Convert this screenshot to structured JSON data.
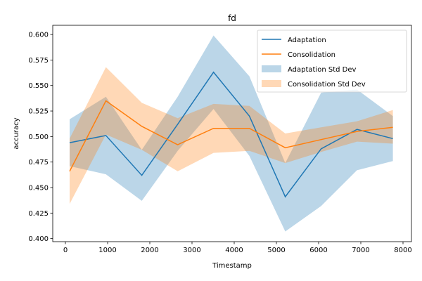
{
  "chart_data": {
    "type": "line",
    "title": "fd",
    "xlabel": "Timestamp",
    "ylabel": "accuracy",
    "xlim": [
      -300,
      8200
    ],
    "ylim": [
      0.397,
      0.609
    ],
    "xticks": [
      0,
      1000,
      2000,
      3000,
      4000,
      5000,
      6000,
      7000,
      8000
    ],
    "xtick_labels": [
      "0",
      "1000",
      "2000",
      "3000",
      "4000",
      "5000",
      "6000",
      "7000",
      "8000"
    ],
    "yticks": [
      0.4,
      0.425,
      0.45,
      0.475,
      0.5,
      0.525,
      0.55,
      0.575,
      0.6
    ],
    "ytick_labels": [
      "0.400",
      "0.425",
      "0.450",
      "0.475",
      "0.500",
      "0.525",
      "0.550",
      "0.575",
      "0.600"
    ],
    "grid": false,
    "legend_position": "top-right",
    "x": [
      100,
      960,
      1810,
      2660,
      3510,
      4360,
      5210,
      6060,
      6910,
      7760
    ],
    "series": [
      {
        "name": "Adaptation",
        "color": "#1f77b4",
        "values": [
          0.494,
          0.501,
          0.462,
          0.512,
          0.563,
          0.52,
          0.441,
          0.488,
          0.507,
          0.498
        ],
        "std_name": "Adaptation Std Dev",
        "std_color": "#1f77b4",
        "lower": [
          0.471,
          0.463,
          0.437,
          0.486,
          0.527,
          0.481,
          0.407,
          0.432,
          0.467,
          0.476
        ],
        "upper": [
          0.517,
          0.539,
          0.487,
          0.539,
          0.599,
          0.559,
          0.474,
          0.543,
          0.546,
          0.52
        ]
      },
      {
        "name": "Consolidation",
        "color": "#ff7f0e",
        "values": [
          0.466,
          0.535,
          0.51,
          0.492,
          0.508,
          0.508,
          0.489,
          0.497,
          0.505,
          0.509
        ],
        "std_name": "Consolidation Std Dev",
        "std_color": "#ff7f0e",
        "lower": [
          0.434,
          0.502,
          0.487,
          0.466,
          0.484,
          0.486,
          0.474,
          0.485,
          0.495,
          0.493
        ],
        "upper": [
          0.498,
          0.568,
          0.533,
          0.518,
          0.532,
          0.53,
          0.503,
          0.509,
          0.515,
          0.526
        ]
      }
    ]
  }
}
